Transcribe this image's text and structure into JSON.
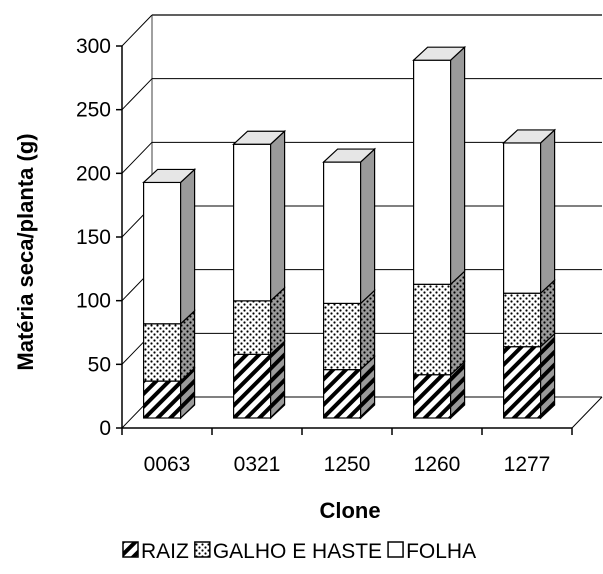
{
  "chart_data": {
    "type": "bar",
    "stacked": true,
    "three_d": true,
    "title": "",
    "xlabel": "Clone",
    "ylabel": "Matéria seca/planta (g)",
    "ylim": [
      0,
      300
    ],
    "yticks": [
      0,
      50,
      100,
      150,
      200,
      250,
      300
    ],
    "grid": true,
    "legend_position": "bottom",
    "categories": [
      "0063",
      "0321",
      "1250",
      "1260",
      "1277"
    ],
    "series": [
      {
        "name": "RAIZ",
        "pattern": "diagonal-hatch",
        "values": [
          29,
          50,
          38,
          34,
          56
        ]
      },
      {
        "name": "GALHO E HASTE",
        "pattern": "dotted",
        "values": [
          45,
          42,
          52,
          71,
          42
        ]
      },
      {
        "name": "FOLHA",
        "pattern": "white",
        "values": [
          111,
          123,
          111,
          176,
          118
        ]
      }
    ],
    "colors": {
      "top_face": "#e6e6e6",
      "side_face": "#9a9a9a",
      "grid": "#000000"
    }
  }
}
